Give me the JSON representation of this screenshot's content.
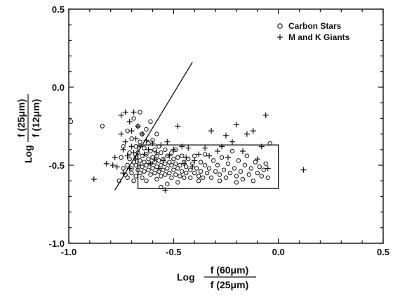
{
  "chart_data": {
    "type": "scatter",
    "xlim": [
      -1.0,
      0.5
    ],
    "ylim": [
      -1.0,
      0.5
    ],
    "xticks": [
      -1.0,
      -0.5,
      0.0,
      0.5
    ],
    "yticks": [
      -1.0,
      -0.5,
      0.0,
      0.5
    ],
    "xtick_labels": [
      "-1.0",
      "-0.5",
      "0.0",
      "0.5"
    ],
    "ytick_labels": [
      "-1.0",
      "-0.5",
      "0.0",
      "0.5"
    ],
    "xlabel": {
      "prefix": "Log",
      "numerator": "f (60μm)",
      "denominator": "f (25μm)"
    },
    "ylabel": {
      "prefix": "Log",
      "numerator": "f (25μm)",
      "denominator": "f (12μm)"
    },
    "grid": false,
    "legend_position": "top-right",
    "series": [
      {
        "name": "Carbon Stars",
        "marker": "circle",
        "points": [
          [
            -0.99,
            -0.22
          ],
          [
            -0.84,
            -0.25
          ],
          [
            -0.76,
            -0.6
          ],
          [
            -0.75,
            -0.45
          ],
          [
            -0.74,
            -0.38
          ],
          [
            -0.74,
            -0.52
          ],
          [
            -0.73,
            -0.56
          ],
          [
            -0.72,
            -0.28
          ],
          [
            -0.72,
            -0.5
          ],
          [
            -0.72,
            -0.58
          ],
          [
            -0.71,
            -0.42
          ],
          [
            -0.71,
            -0.46
          ],
          [
            -0.7,
            -0.33
          ],
          [
            -0.7,
            -0.52
          ],
          [
            -0.7,
            -0.55
          ],
          [
            -0.69,
            -0.2
          ],
          [
            -0.69,
            -0.48
          ],
          [
            -0.69,
            -0.6
          ],
          [
            -0.68,
            -0.38
          ],
          [
            -0.68,
            -0.45
          ],
          [
            -0.68,
            -0.5
          ],
          [
            -0.68,
            -0.57
          ],
          [
            -0.67,
            -0.25
          ],
          [
            -0.67,
            -0.42
          ],
          [
            -0.67,
            -0.53
          ],
          [
            -0.66,
            -0.16
          ],
          [
            -0.66,
            -0.35
          ],
          [
            -0.66,
            -0.47
          ],
          [
            -0.66,
            -0.55
          ],
          [
            -0.65,
            -0.3
          ],
          [
            -0.65,
            -0.44
          ],
          [
            -0.65,
            -0.51
          ],
          [
            -0.65,
            -0.58
          ],
          [
            -0.64,
            -0.39
          ],
          [
            -0.64,
            -0.48
          ],
          [
            -0.64,
            -0.54
          ],
          [
            -0.63,
            -0.27
          ],
          [
            -0.63,
            -0.43
          ],
          [
            -0.63,
            -0.5
          ],
          [
            -0.63,
            -0.6
          ],
          [
            -0.62,
            -0.36
          ],
          [
            -0.62,
            -0.46
          ],
          [
            -0.62,
            -0.53
          ],
          [
            -0.61,
            -0.22
          ],
          [
            -0.61,
            -0.41
          ],
          [
            -0.61,
            -0.49
          ],
          [
            -0.61,
            -0.56
          ],
          [
            -0.6,
            -0.34
          ],
          [
            -0.6,
            -0.45
          ],
          [
            -0.6,
            -0.52
          ],
          [
            -0.59,
            -0.4
          ],
          [
            -0.59,
            -0.48
          ],
          [
            -0.59,
            -0.55
          ],
          [
            -0.58,
            -0.3
          ],
          [
            -0.58,
            -0.44
          ],
          [
            -0.58,
            -0.51
          ],
          [
            -0.58,
            -0.59
          ],
          [
            -0.57,
            -0.38
          ],
          [
            -0.57,
            -0.47
          ],
          [
            -0.57,
            -0.54
          ],
          [
            -0.56,
            -0.42
          ],
          [
            -0.56,
            -0.5
          ],
          [
            -0.56,
            -0.57
          ],
          [
            -0.55,
            -0.46
          ],
          [
            -0.55,
            -0.53
          ],
          [
            -0.54,
            -0.4
          ],
          [
            -0.54,
            -0.49
          ],
          [
            -0.54,
            -0.56
          ],
          [
            -0.53,
            -0.44
          ],
          [
            -0.53,
            -0.52
          ],
          [
            -0.53,
            -0.62
          ],
          [
            -0.52,
            -0.48
          ],
          [
            -0.52,
            -0.55
          ],
          [
            -0.51,
            -0.42
          ],
          [
            -0.51,
            -0.5
          ],
          [
            -0.51,
            -0.58
          ],
          [
            -0.5,
            -0.46
          ],
          [
            -0.5,
            -0.53
          ],
          [
            -0.49,
            -0.4
          ],
          [
            -0.49,
            -0.49
          ],
          [
            -0.49,
            -0.56
          ],
          [
            -0.48,
            -0.45
          ],
          [
            -0.48,
            -0.52
          ],
          [
            -0.47,
            -0.5
          ],
          [
            -0.47,
            -0.57
          ],
          [
            -0.46,
            -0.44
          ],
          [
            -0.46,
            -0.54
          ],
          [
            -0.45,
            -0.48
          ],
          [
            -0.45,
            -0.58
          ],
          [
            -0.44,
            -0.51
          ],
          [
            -0.44,
            -0.55
          ],
          [
            -0.43,
            -0.46
          ],
          [
            -0.42,
            -0.53
          ],
          [
            -0.42,
            -0.58
          ],
          [
            -0.41,
            -0.49
          ],
          [
            -0.4,
            -0.55
          ],
          [
            -0.4,
            -0.44
          ],
          [
            -0.39,
            -0.52
          ],
          [
            -0.38,
            -0.57
          ],
          [
            -0.37,
            -0.48
          ],
          [
            -0.37,
            -0.54
          ],
          [
            -0.36,
            -0.58
          ],
          [
            -0.35,
            -0.5
          ],
          [
            -0.35,
            -0.43
          ],
          [
            -0.34,
            -0.55
          ],
          [
            -0.33,
            -0.52
          ],
          [
            -0.32,
            -0.58
          ],
          [
            -0.31,
            -0.47
          ],
          [
            -0.3,
            -0.54
          ],
          [
            -0.29,
            -0.5
          ],
          [
            -0.28,
            -0.56
          ],
          [
            -0.27,
            -0.45
          ],
          [
            -0.26,
            -0.53
          ],
          [
            -0.25,
            -0.58
          ],
          [
            -0.24,
            -0.49
          ],
          [
            -0.23,
            -0.55
          ],
          [
            -0.22,
            -0.41
          ],
          [
            -0.21,
            -0.52
          ],
          [
            -0.2,
            -0.57
          ],
          [
            -0.19,
            -0.47
          ],
          [
            -0.18,
            -0.54
          ],
          [
            -0.17,
            -0.59
          ],
          [
            -0.16,
            -0.5
          ],
          [
            -0.15,
            -0.44
          ],
          [
            -0.14,
            -0.56
          ],
          [
            -0.13,
            -0.52
          ],
          [
            -0.12,
            -0.6
          ],
          [
            -0.11,
            -0.48
          ],
          [
            -0.1,
            -0.55
          ],
          [
            -0.09,
            -0.51
          ],
          [
            -0.08,
            -0.57
          ],
          [
            -0.07,
            -0.53
          ],
          [
            -0.06,
            -0.49
          ],
          [
            -0.05,
            -0.58
          ],
          [
            -0.04,
            -0.36
          ],
          [
            -0.56,
            -0.64
          ],
          [
            -0.48,
            -0.61
          ],
          [
            -0.38,
            -0.6
          ],
          [
            -0.28,
            -0.6
          ],
          [
            -0.2,
            -0.61
          ]
        ]
      },
      {
        "name": "M and K Giants",
        "marker": "plus",
        "points": [
          [
            -0.88,
            -0.59
          ],
          [
            -0.82,
            -0.49
          ],
          [
            -0.79,
            -0.5
          ],
          [
            -0.77,
            -0.51
          ],
          [
            -0.78,
            -0.45
          ],
          [
            -0.75,
            -0.18
          ],
          [
            -0.75,
            -0.3
          ],
          [
            -0.74,
            -0.4
          ],
          [
            -0.74,
            -0.55
          ],
          [
            -0.73,
            -0.16
          ],
          [
            -0.73,
            -0.35
          ],
          [
            -0.72,
            -0.44
          ],
          [
            -0.71,
            -0.22
          ],
          [
            -0.71,
            -0.52
          ],
          [
            -0.7,
            -0.28
          ],
          [
            -0.7,
            -0.38
          ],
          [
            -0.69,
            -0.42
          ],
          [
            -0.69,
            -0.16
          ],
          [
            -0.68,
            -0.33
          ],
          [
            -0.68,
            -0.46
          ],
          [
            -0.67,
            -0.25
          ],
          [
            -0.66,
            -0.38
          ],
          [
            -0.66,
            -0.5
          ],
          [
            -0.65,
            -0.3
          ],
          [
            -0.64,
            -0.43
          ],
          [
            -0.63,
            -0.34
          ],
          [
            -0.62,
            -0.4
          ],
          [
            -0.61,
            -0.49
          ],
          [
            -0.6,
            -0.36
          ],
          [
            -0.59,
            -0.46
          ],
          [
            -0.58,
            -0.42
          ],
          [
            -0.57,
            -0.52
          ],
          [
            -0.56,
            -0.37
          ],
          [
            -0.55,
            -0.47
          ],
          [
            -0.53,
            -0.35
          ],
          [
            -0.52,
            -0.44
          ],
          [
            -0.5,
            -0.4
          ],
          [
            -0.48,
            -0.25
          ],
          [
            -0.46,
            -0.38
          ],
          [
            -0.45,
            -0.49
          ],
          [
            -0.44,
            -0.45
          ],
          [
            -0.43,
            -0.39
          ],
          [
            -0.41,
            -0.51
          ],
          [
            -0.4,
            -0.47
          ],
          [
            -0.38,
            -0.43
          ],
          [
            -0.35,
            -0.39
          ],
          [
            -0.33,
            -0.44
          ],
          [
            -0.32,
            -0.28
          ],
          [
            -0.29,
            -0.41
          ],
          [
            -0.27,
            -0.38
          ],
          [
            -0.25,
            -0.31
          ],
          [
            -0.24,
            -0.45
          ],
          [
            -0.22,
            -0.35
          ],
          [
            -0.2,
            -0.24
          ],
          [
            -0.17,
            -0.41
          ],
          [
            -0.15,
            -0.3
          ],
          [
            -0.12,
            -0.28
          ],
          [
            -0.1,
            -0.46
          ],
          [
            -0.08,
            -0.38
          ],
          [
            -0.06,
            -0.18
          ],
          [
            -0.05,
            -0.52
          ],
          [
            0.12,
            -0.53
          ],
          [
            -0.54,
            -0.66
          ]
        ]
      }
    ],
    "annotations": {
      "line": {
        "x1": -0.78,
        "y1": -0.66,
        "x2": -0.41,
        "y2": 0.16
      },
      "box": {
        "x0": -0.67,
        "x1": 0.0,
        "y0": -0.65,
        "y1": -0.37
      }
    }
  }
}
